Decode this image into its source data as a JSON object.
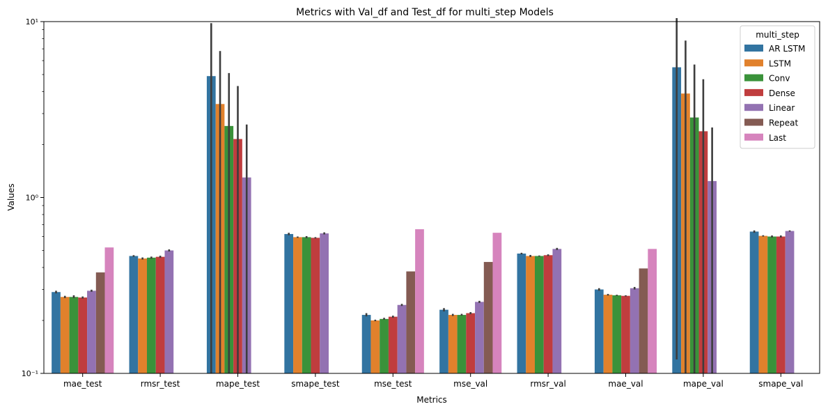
{
  "chart_data": {
    "type": "bar",
    "title": "Metrics with Val_df and Test_df for multi_step Models",
    "xlabel": "Metrics",
    "ylabel": "Values",
    "yscale": "log",
    "ylim": [
      0.1,
      10
    ],
    "y_tick_labels": [
      "10⁻¹",
      "10⁰",
      "10¹"
    ],
    "categories": [
      "mae_test",
      "rmsr_test",
      "mape_test",
      "smape_test",
      "mse_test",
      "mse_val",
      "rmsr_val",
      "mae_val",
      "mape_val",
      "smape_val"
    ],
    "legend": {
      "title": "multi_step",
      "placement": "top-right"
    },
    "series": [
      {
        "name": "AR LSTM",
        "color": "#3274a1",
        "values": [
          0.29,
          0.465,
          4.9,
          0.62,
          0.215,
          0.23,
          0.48,
          0.3,
          5.5,
          0.64
        ],
        "error": [
          [
            0.285,
            0.295
          ],
          [
            0.46,
            0.47
          ],
          [
            0.1,
            9.8
          ],
          [
            0.61,
            0.63
          ],
          [
            0.211,
            0.22
          ],
          [
            0.225,
            0.235
          ],
          [
            0.475,
            0.485
          ],
          [
            0.295,
            0.305
          ],
          [
            0.12,
            10.5
          ],
          [
            0.63,
            0.65
          ]
        ]
      },
      {
        "name": "LSTM",
        "color": "#e1812c",
        "values": [
          0.272,
          0.45,
          3.4,
          0.595,
          0.2,
          0.215,
          0.465,
          0.28,
          3.9,
          0.605
        ],
        "error": [
          [
            0.268,
            0.276
          ],
          [
            0.45,
            0.45
          ],
          [
            0.1,
            6.8
          ],
          [
            0.59,
            0.6
          ],
          [
            0.198,
            0.202
          ],
          [
            0.215,
            0.215
          ],
          [
            0.465,
            0.465
          ],
          [
            0.277,
            0.283
          ],
          [
            0.1,
            7.8
          ],
          [
            0.6,
            0.61
          ]
        ]
      },
      {
        "name": "Conv",
        "color": "#3a923a",
        "values": [
          0.272,
          0.455,
          2.55,
          0.595,
          0.204,
          0.215,
          0.465,
          0.278,
          2.85,
          0.6
        ],
        "error": [
          [
            0.268,
            0.278
          ],
          [
            0.455,
            0.455
          ],
          [
            0.1,
            5.1
          ],
          [
            0.595,
            0.595
          ],
          [
            0.202,
            0.207
          ],
          [
            0.213,
            0.218
          ],
          [
            0.462,
            0.468
          ],
          [
            0.276,
            0.28
          ],
          [
            0.1,
            5.7
          ],
          [
            0.6,
            0.6
          ]
        ]
      },
      {
        "name": "Dense",
        "color": "#c03d3e",
        "values": [
          0.27,
          0.46,
          2.15,
          0.59,
          0.21,
          0.22,
          0.47,
          0.276,
          2.38,
          0.6
        ],
        "error": [
          [
            0.27,
            0.27
          ],
          [
            0.46,
            0.46
          ],
          [
            0.1,
            4.3
          ],
          [
            0.585,
            0.595
          ],
          [
            0.21,
            0.21
          ],
          [
            0.217,
            0.223
          ],
          [
            0.465,
            0.475
          ],
          [
            0.274,
            0.278
          ],
          [
            0.1,
            4.7
          ],
          [
            0.6,
            0.6
          ]
        ]
      },
      {
        "name": "Linear",
        "color": "#9372b2",
        "values": [
          0.295,
          0.5,
          1.3,
          0.625,
          0.245,
          0.255,
          0.51,
          0.305,
          1.24,
          0.645
        ],
        "error": [
          [
            0.295,
            0.295
          ],
          [
            0.5,
            0.5
          ],
          [
            0.1,
            2.6
          ],
          [
            0.625,
            0.625
          ],
          [
            0.245,
            0.245
          ],
          [
            0.255,
            0.255
          ],
          [
            0.51,
            0.51
          ],
          [
            0.3,
            0.31
          ],
          [
            0.1,
            2.5
          ],
          [
            0.64,
            0.65
          ]
        ]
      },
      {
        "name": "Repeat",
        "color": "#845b53",
        "values": [
          0.375,
          0,
          0,
          0,
          0.38,
          0.43,
          0,
          0.395,
          0,
          0
        ],
        "error": []
      },
      {
        "name": "Last",
        "color": "#d684bd",
        "values": [
          0.52,
          0,
          0,
          0,
          0.66,
          0.63,
          0,
          0.51,
          0,
          0
        ],
        "error": []
      }
    ]
  }
}
